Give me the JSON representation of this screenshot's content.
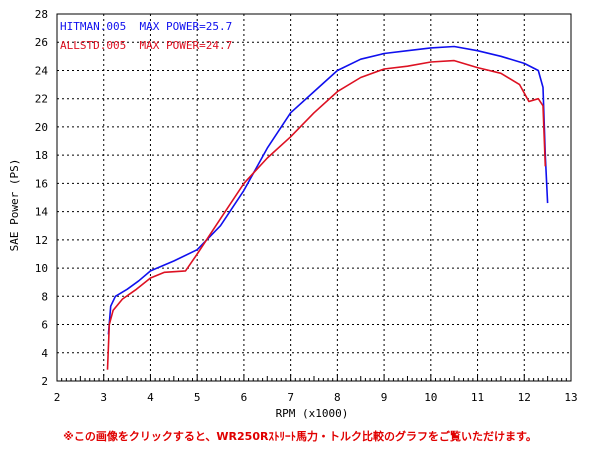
{
  "chart_data": {
    "type": "line",
    "xlabel": "RPM (x1000)",
    "ylabel": "SAE Power (PS)",
    "xlim": [
      2,
      13
    ],
    "ylim": [
      2,
      28
    ],
    "x_ticks": [
      2,
      3,
      4,
      5,
      6,
      7,
      8,
      9,
      10,
      11,
      12,
      13
    ],
    "y_ticks": [
      2,
      4,
      6,
      8,
      10,
      12,
      14,
      16,
      18,
      20,
      22,
      24,
      26,
      28
    ],
    "grid": true,
    "legend_position": "top-left",
    "series": [
      {
        "name": "HITMAN.005  MAX POWER=25.7",
        "color": "#1010ee",
        "x": [
          3.1,
          3.15,
          3.25,
          3.5,
          3.75,
          4.0,
          4.5,
          5.0,
          5.5,
          6.0,
          6.5,
          7.0,
          7.5,
          8.0,
          8.5,
          9.0,
          9.5,
          10.0,
          10.5,
          11.0,
          11.5,
          12.0,
          12.3,
          12.4,
          12.45,
          12.5
        ],
        "y": [
          5.3,
          7.3,
          8.0,
          8.5,
          9.1,
          9.8,
          10.5,
          11.3,
          13.0,
          15.5,
          18.5,
          21.0,
          22.5,
          24.0,
          24.8,
          25.2,
          25.4,
          25.6,
          25.7,
          25.4,
          25.0,
          24.5,
          24.0,
          22.8,
          18.0,
          14.6
        ]
      },
      {
        "name": "ALLSTD.005  MAX POWER=24.7",
        "color": "#dd1122",
        "x": [
          3.08,
          3.12,
          3.2,
          3.4,
          3.7,
          4.0,
          4.3,
          4.75,
          5.0,
          5.5,
          6.0,
          6.5,
          7.0,
          7.5,
          8.0,
          8.5,
          9.0,
          9.5,
          10.0,
          10.5,
          11.0,
          11.5,
          11.9,
          12.1,
          12.3,
          12.4,
          12.45
        ],
        "y": [
          2.8,
          6.0,
          7.0,
          7.8,
          8.5,
          9.3,
          9.7,
          9.8,
          11.0,
          13.5,
          16.0,
          17.8,
          19.3,
          21.0,
          22.5,
          23.5,
          24.1,
          24.3,
          24.6,
          24.7,
          24.2,
          23.8,
          23.0,
          21.8,
          22.0,
          21.5,
          17.2
        ]
      }
    ]
  },
  "footer": {
    "note": "※この画像をクリックすると、WR250Rｽﾄﾘｰﾄ馬力・トルク比較のグラフをご覧いただけます。"
  }
}
